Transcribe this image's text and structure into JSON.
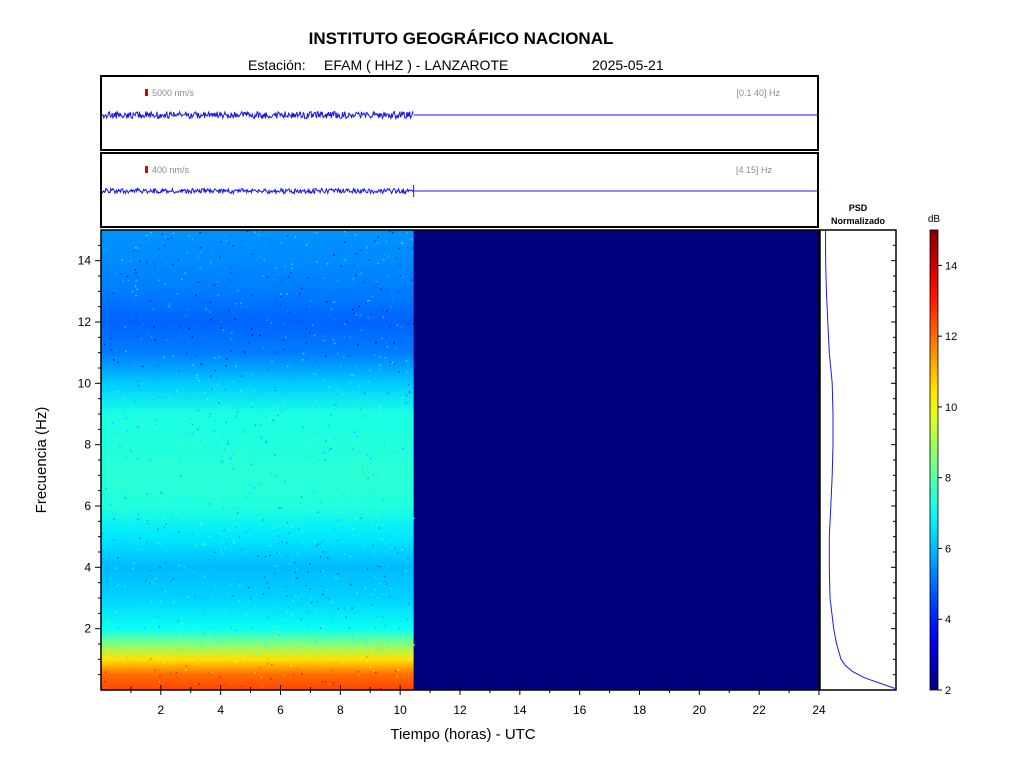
{
  "header": {
    "title": "INSTITUTO GEOGRÁFICO NACIONAL",
    "station_label": "Estación:",
    "station_value": "EFAM ( HHZ ) - LANZAROTE",
    "date": "2025-05-21"
  },
  "colors": {
    "trace": "#1a1ae6",
    "scale_bar": "#e00000",
    "spectrogram_empty": "#00007f"
  },
  "chart_data": [
    {
      "type": "line",
      "panel": "seismogram-broadband",
      "scale_label": "5000 nm/s",
      "filter_label": "[0.1 40] Hz",
      "data_extent_hours": [
        0,
        10.45
      ],
      "x_range": [
        0,
        24
      ]
    },
    {
      "type": "line",
      "panel": "seismogram-filtered",
      "scale_label": "400 nm/s",
      "filter_label": "[4 15] Hz",
      "data_extent_hours": [
        0,
        10.45
      ],
      "x_range": [
        0,
        24
      ]
    },
    {
      "type": "heatmap",
      "panel": "spectrogram",
      "xlabel": "Tiempo (horas) - UTC",
      "ylabel": "Frecuencia  (Hz)",
      "xlim": [
        0,
        24
      ],
      "ylim": [
        0,
        15
      ],
      "xticks": [
        2,
        4,
        6,
        8,
        10,
        12,
        14,
        16,
        18,
        20,
        22,
        24
      ],
      "yticks": [
        2,
        4,
        6,
        8,
        10,
        12,
        14
      ],
      "data_extent_hours": [
        0,
        10.45
      ],
      "freq_profile": {
        "freq": [
          0,
          0.5,
          1.0,
          1.5,
          2,
          3,
          4,
          5,
          6,
          7,
          8,
          9,
          10,
          11,
          12,
          13,
          14,
          15
        ],
        "db": [
          12.5,
          12.0,
          10.5,
          8.5,
          7.0,
          6.3,
          6.0,
          6.6,
          7.3,
          7.4,
          7.3,
          7.2,
          6.2,
          5.2,
          4.9,
          5.2,
          5.4,
          5.5
        ]
      }
    },
    {
      "type": "line",
      "panel": "psd",
      "title_line1": "PSD",
      "title_line2": "Normalizado",
      "freq": [
        0.05,
        0.2,
        0.4,
        0.6,
        0.8,
        1.0,
        1.5,
        2,
        3,
        4,
        5,
        6,
        7,
        8,
        9,
        10,
        11,
        12,
        13,
        14,
        15
      ],
      "values": [
        1.0,
        0.82,
        0.58,
        0.42,
        0.32,
        0.26,
        0.2,
        0.16,
        0.11,
        0.1,
        0.1,
        0.12,
        0.14,
        0.15,
        0.15,
        0.14,
        0.1,
        0.08,
        0.06,
        0.05,
        0.05
      ],
      "xlim": [
        0,
        1
      ],
      "ylim": [
        0,
        15
      ]
    },
    {
      "type": "heatmap",
      "panel": "colorbar",
      "label": "dB",
      "range": [
        2,
        15
      ],
      "ticks": [
        2,
        4,
        6,
        8,
        10,
        12,
        14
      ]
    }
  ]
}
